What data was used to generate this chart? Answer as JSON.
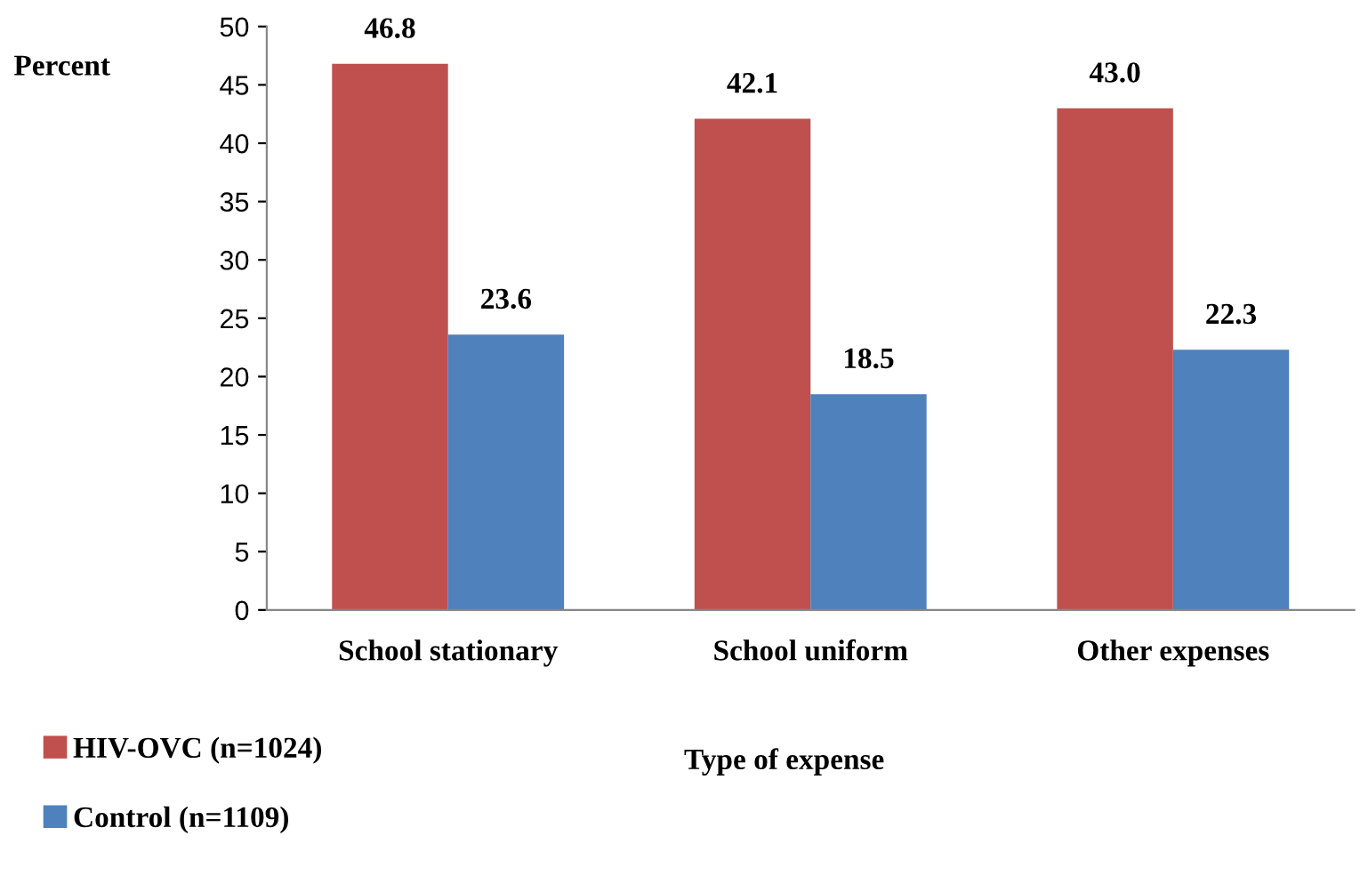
{
  "chart_data": {
    "type": "bar",
    "ylabel": "Percent",
    "xlabel": "Type of expense",
    "categories": [
      "School stationary",
      "School uniform",
      "Other expenses"
    ],
    "series": [
      {
        "name": "HIV-OVC (n=1024)",
        "color": "#c0504d",
        "values": [
          46.8,
          42.1,
          43.0
        ],
        "value_labels": [
          "46.8",
          "42.1",
          "43.0"
        ]
      },
      {
        "name": "Control (n=1109)",
        "color": "#4f81bd",
        "values": [
          23.6,
          18.5,
          22.3
        ],
        "value_labels": [
          "23.6",
          "18.5",
          "22.3"
        ]
      }
    ],
    "ylim": [
      0,
      50
    ],
    "yticks": [
      0,
      5,
      10,
      15,
      20,
      25,
      30,
      35,
      40,
      45,
      50
    ],
    "grid": false,
    "legend": "bottom left"
  }
}
